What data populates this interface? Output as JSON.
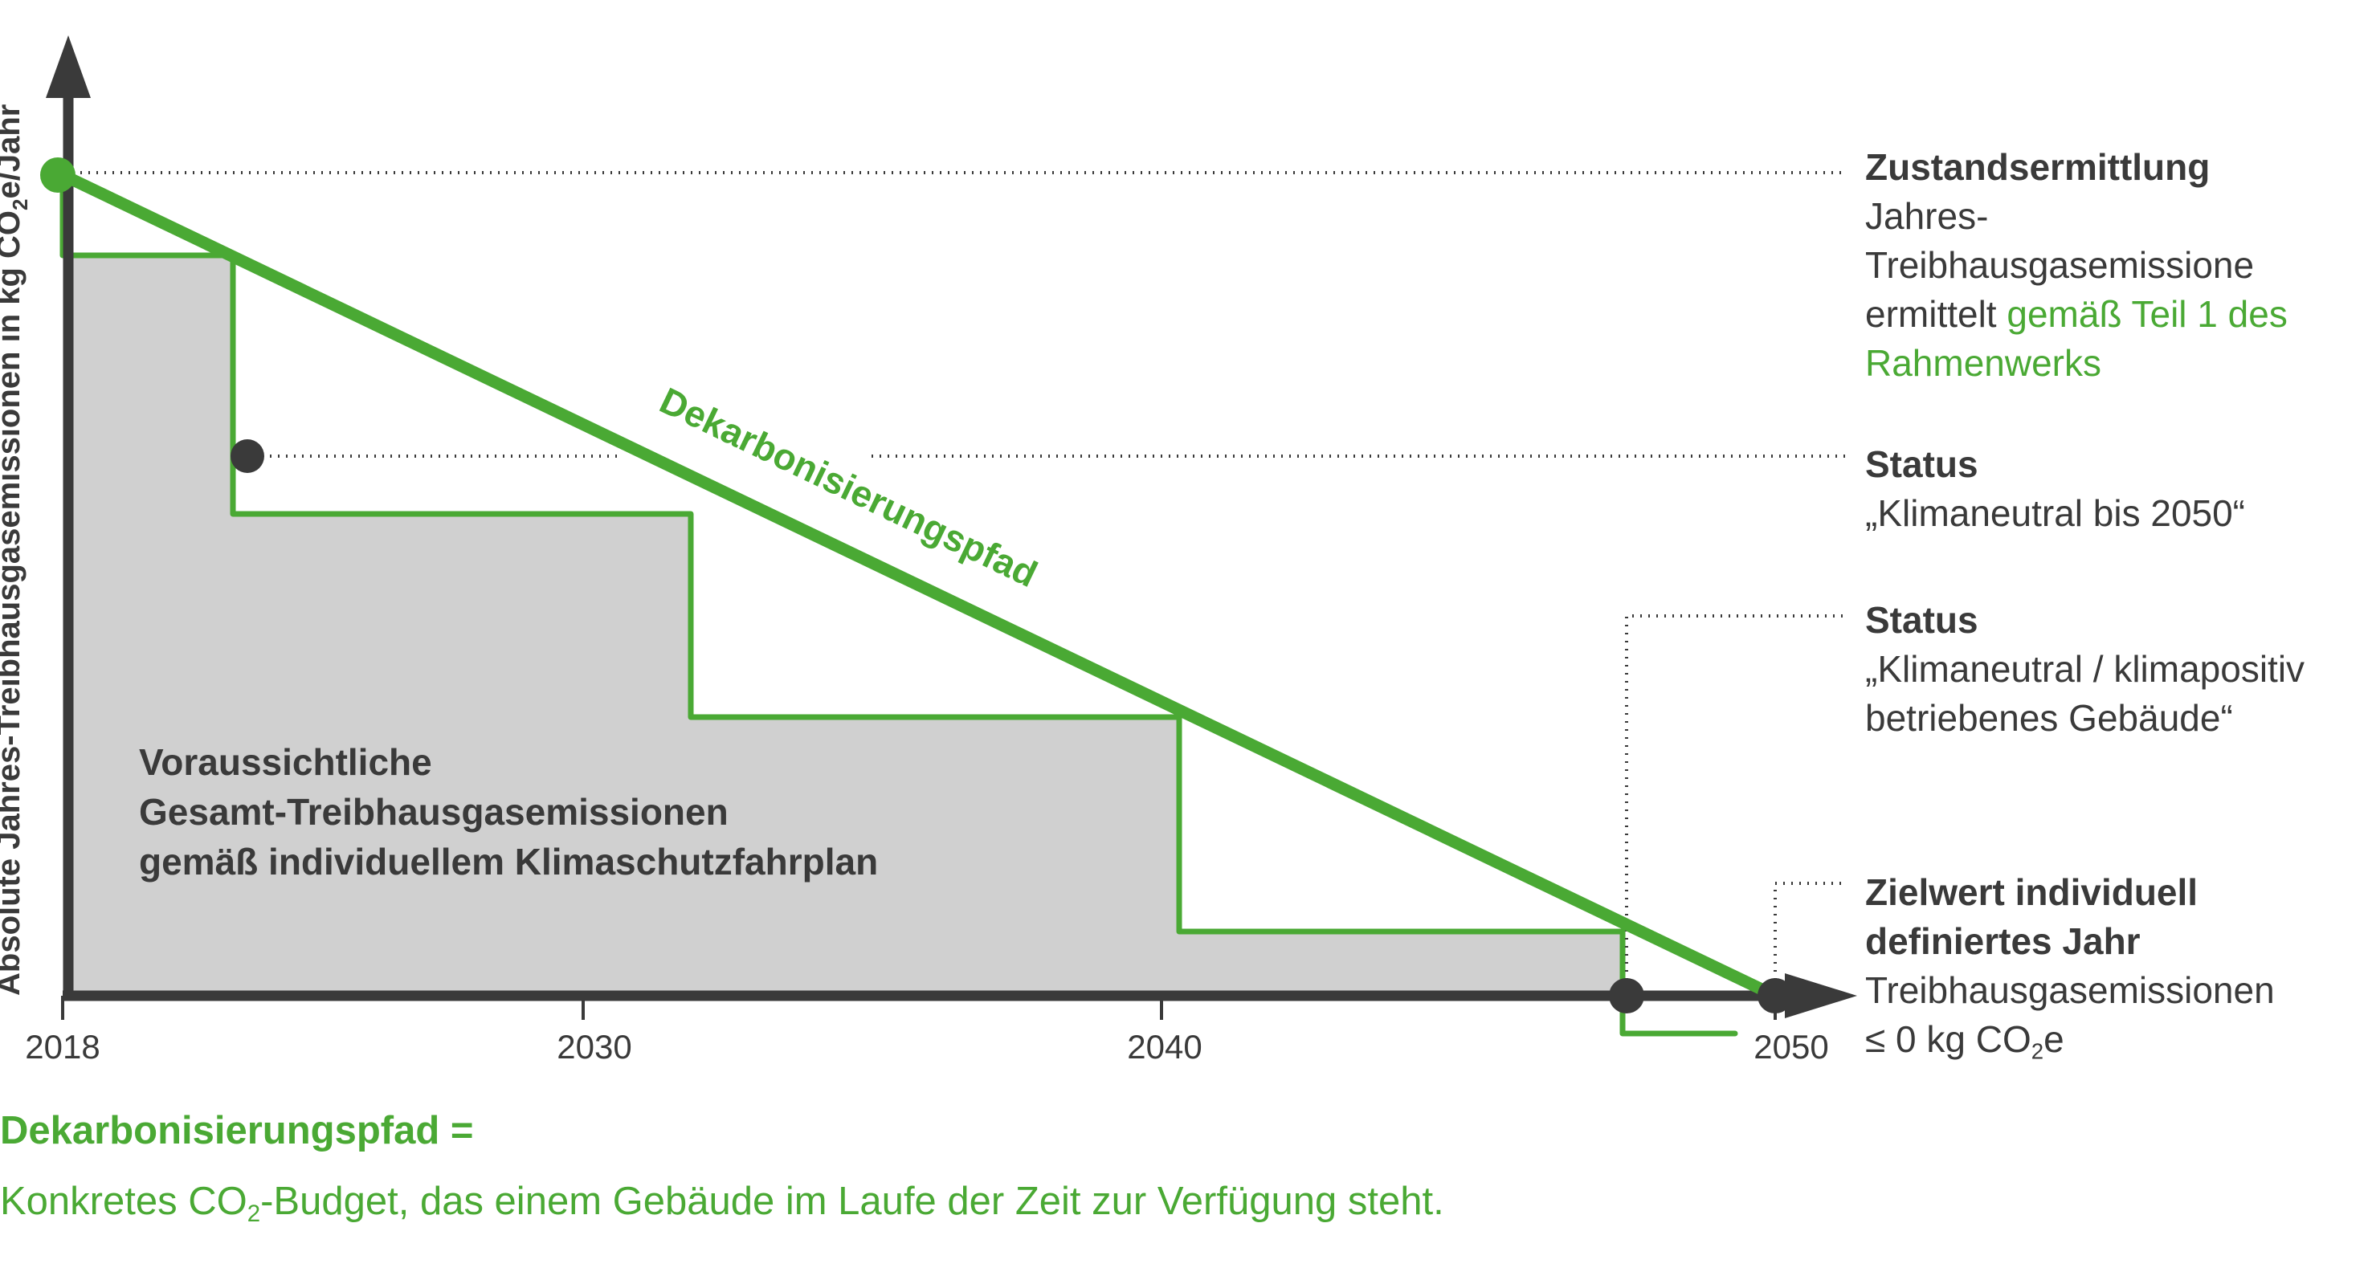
{
  "diagram": {
    "y_axis_label": "Absolute Jahres-Treibhausgasemissionen in kg CO",
    "y_axis_label_sub": "2",
    "y_axis_label_suffix": "e/Jahr",
    "x_ticks": [
      "2018",
      "2030",
      "2040",
      "2050"
    ],
    "path_label": "Dekarbonisierungspfad",
    "area_label_lines": [
      "Voraussichtliche",
      "Gesamt-Treibhausgasemissionen",
      "gemäß individuellem Klimaschutzfahrplan"
    ],
    "colors": {
      "green": "#4aa934",
      "dark": "#3a3a3a",
      "area": "#d0d0d0"
    }
  },
  "notes": [
    {
      "title": "Zustandsermittlung",
      "line1": "Jahres-Treibhausgasemissione",
      "line2_plain": "ermittelt ",
      "line2_green": "gemäß Teil 1 des",
      "line3_green": "Rahmenwerks"
    },
    {
      "title": "Status",
      "line1": "„Klimaneutral bis 2050“"
    },
    {
      "title": "Status",
      "line1": "„Klimaneutral / klimapositiv",
      "line2": "betriebenes Gebäude“"
    },
    {
      "title_line1": "Zielwert individuell",
      "title_line2": "definiertes Jahr",
      "line1": "Treibhausgasemissionen",
      "line2_prefix": "≤ 0 kg CO",
      "line2_sub": "2",
      "line2_suffix": "e"
    }
  ],
  "footer": {
    "title": "Dekarbonisierungspfad =",
    "text_prefix": "Konkretes CO",
    "text_sub": "2",
    "text_suffix": "-Budget, das einem Gebäude im Laufe der Zeit zur Verfügung steht."
  }
}
